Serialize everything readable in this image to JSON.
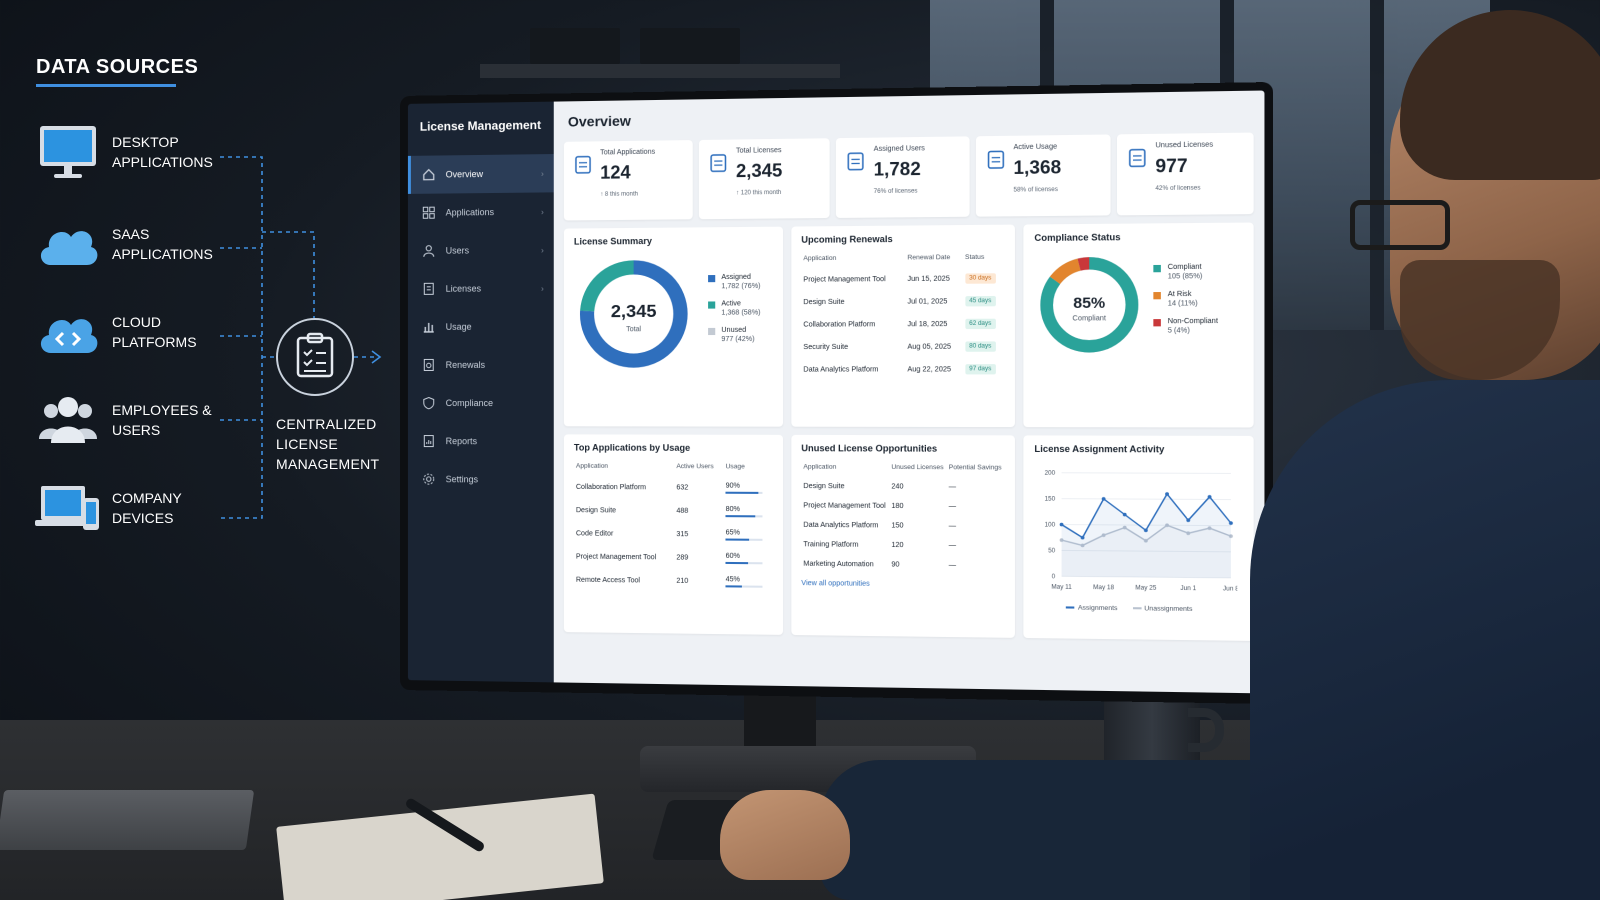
{
  "data_sources": {
    "title": "DATA SOURCES",
    "items": [
      {
        "label": "DESKTOP APPLICATIONS",
        "icon": "desktop-monitor-icon"
      },
      {
        "label": "SAAS APPLICATIONS",
        "icon": "cloud-icon"
      },
      {
        "label": "CLOUD PLATFORMS",
        "icon": "cloud-code-icon"
      },
      {
        "label": "EMPLOYEES & USERS",
        "icon": "users-group-icon"
      },
      {
        "label": "COMPANY DEVICES",
        "icon": "laptop-phone-icon"
      }
    ],
    "hub_label": "CENTRALIZED LICENSE MANAGEMENT",
    "hub_icon": "clipboard-checklist-icon"
  },
  "app": {
    "title": "License Management",
    "nav": [
      {
        "label": "Overview",
        "icon": "home-icon",
        "active": true
      },
      {
        "label": "Applications",
        "icon": "grid-icon"
      },
      {
        "label": "Users",
        "icon": "user-icon"
      },
      {
        "label": "Licenses",
        "icon": "license-doc-icon"
      },
      {
        "label": "Usage",
        "icon": "bar-chart-icon"
      },
      {
        "label": "Renewals",
        "icon": "renew-doc-icon"
      },
      {
        "label": "Compliance",
        "icon": "shield-doc-icon"
      },
      {
        "label": "Reports",
        "icon": "report-icon"
      },
      {
        "label": "Settings",
        "icon": "gear-icon"
      }
    ],
    "page_title": "Overview",
    "kpis": [
      {
        "label": "Total Applications",
        "value": "124",
        "sub": "↑ 8 this month",
        "icon": "app-icon"
      },
      {
        "label": "Total Licenses",
        "value": "2,345",
        "sub": "↑ 120 this month",
        "icon": "license-icon"
      },
      {
        "label": "Assigned Users",
        "value": "1,782",
        "sub": "76% of licenses",
        "icon": "user-icon"
      },
      {
        "label": "Active Usage",
        "value": "1,368",
        "sub": "58% of licenses",
        "icon": "activity-icon"
      },
      {
        "label": "Unused Licenses",
        "value": "977",
        "sub": "42% of licenses",
        "icon": "user-outline-icon"
      }
    ],
    "license_summary": {
      "title": "License Summary",
      "center_value": "2,345",
      "center_label": "Total",
      "legend": [
        {
          "name": "Assigned",
          "detail": "1,782 (76%)",
          "color": "#2f6fbd",
          "value": 76
        },
        {
          "name": "Active",
          "detail": "1,368 (58%)",
          "color": "#2aa39a",
          "value": 58
        },
        {
          "name": "Unused",
          "detail": "977 (42%)",
          "color": "#c3cad3",
          "value": 42
        }
      ]
    },
    "renewals": {
      "title": "Upcoming Renewals",
      "columns": [
        "Application",
        "Renewal Date",
        "Status"
      ],
      "rows": [
        {
          "app": "Project Management Tool",
          "date": "Jun 15, 2025",
          "status": "30 days",
          "tone": "warn"
        },
        {
          "app": "Design Suite",
          "date": "Jul 01, 2025",
          "status": "45 days",
          "tone": "ok"
        },
        {
          "app": "Collaboration Platform",
          "date": "Jul 18, 2025",
          "status": "62 days",
          "tone": "ok"
        },
        {
          "app": "Security Suite",
          "date": "Aug 05, 2025",
          "status": "80 days",
          "tone": "ok"
        },
        {
          "app": "Data Analytics Platform",
          "date": "Aug 22, 2025",
          "status": "97 days",
          "tone": "ok"
        }
      ]
    },
    "compliance": {
      "title": "Compliance Status",
      "center_value": "85%",
      "center_label": "Compliant",
      "legend": [
        {
          "name": "Compliant",
          "detail": "105 (85%)",
          "color": "#2aa39a",
          "value": 85
        },
        {
          "name": "At Risk",
          "detail": "14 (11%)",
          "color": "#e2852e",
          "value": 11
        },
        {
          "name": "Non-Compliant",
          "detail": "5 (4%)",
          "color": "#c9383a",
          "value": 4
        }
      ]
    },
    "top_apps": {
      "title": "Top Applications by Usage",
      "columns": [
        "Application",
        "Active Users",
        "Usage"
      ],
      "rows": [
        {
          "app": "Collaboration Platform",
          "users": "632",
          "usage": "90%",
          "pct": 90
        },
        {
          "app": "Design Suite",
          "users": "488",
          "usage": "80%",
          "pct": 80
        },
        {
          "app": "Code Editor",
          "users": "315",
          "usage": "65%",
          "pct": 65
        },
        {
          "app": "Project Management Tool",
          "users": "289",
          "usage": "60%",
          "pct": 60
        },
        {
          "app": "Remote Access Tool",
          "users": "210",
          "usage": "45%",
          "pct": 45
        }
      ]
    },
    "unused": {
      "title": "Unused License Opportunities",
      "columns": [
        "Application",
        "Unused Licenses",
        "Potential Savings"
      ],
      "rows": [
        {
          "app": "Design Suite",
          "unused": "240",
          "savings": "—"
        },
        {
          "app": "Project Management Tool",
          "unused": "180",
          "savings": "—"
        },
        {
          "app": "Data Analytics Platform",
          "unused": "150",
          "savings": "—"
        },
        {
          "app": "Training Platform",
          "unused": "120",
          "savings": "—"
        },
        {
          "app": "Marketing Automation",
          "unused": "90",
          "savings": "—"
        }
      ],
      "link": "View all opportunities"
    },
    "activity": {
      "title": "License Assignment Activity",
      "legend_assign": "Assignments",
      "legend_unassign": "Unassignments"
    }
  },
  "chart_data": {
    "type": "line",
    "title": "License Assignment Activity",
    "x_ticks": [
      "May 11",
      "May 18",
      "May 25",
      "Jun 1",
      "Jun 8"
    ],
    "y_ticks": [
      0,
      50,
      100,
      150,
      200
    ],
    "ylim": [
      0,
      200
    ],
    "series": [
      {
        "name": "Assignments",
        "color": "#2f6fbd",
        "values": [
          100,
          75,
          150,
          120,
          90,
          160,
          110,
          155,
          105
        ]
      },
      {
        "name": "Unassignments",
        "color": "#b9c2cf",
        "values": [
          70,
          60,
          80,
          95,
          70,
          100,
          85,
          95,
          80
        ]
      }
    ]
  }
}
